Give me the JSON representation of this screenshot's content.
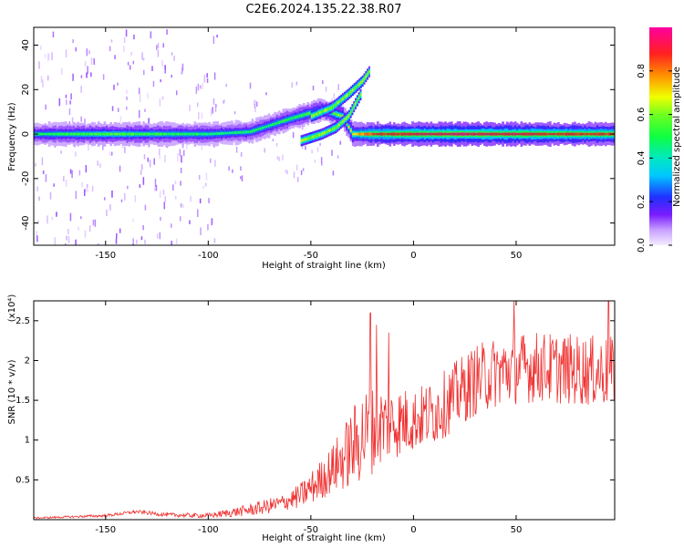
{
  "title": "C2E6.2024.135.22.38.R07",
  "colors": {
    "trace": "#f03232",
    "spectrogram_core": "#e8264a",
    "axis": "#000000"
  },
  "chart_data": [
    {
      "type": "heatmap",
      "xlabel": "Height of straight line (km)",
      "ylabel": "Frequency (Hz)",
      "xlim": [
        -185,
        98
      ],
      "ylim": [
        -50,
        48
      ],
      "x_ticks": [
        -150,
        -100,
        -50,
        0,
        50
      ],
      "y_ticks": [
        40,
        20,
        0,
        -20,
        -40
      ],
      "grid": false,
      "colorbar": {
        "label": "Normalized spectral amplitude",
        "range": [
          0,
          1
        ],
        "ticks": [
          0.0,
          0.2,
          0.4,
          0.6,
          0.8
        ],
        "colormap": "rainbow (purple → blue → cyan → green → yellow → red → magenta)"
      },
      "main_band": {
        "description": "narrow band near 0 Hz across all heights; strongest (red) from about -20 to 95 km",
        "center_hz": [
          [
            -185,
            0
          ],
          [
            -100,
            0
          ],
          [
            -80,
            1
          ],
          [
            -70,
            4
          ],
          [
            -60,
            7
          ],
          [
            -45,
            11
          ],
          [
            -35,
            8
          ],
          [
            -30,
            0
          ],
          [
            -20,
            0
          ],
          [
            95,
            0
          ]
        ],
        "amplitude": [
          [
            -185,
            0.45
          ],
          [
            -150,
            0.55
          ],
          [
            -120,
            0.5
          ],
          [
            -90,
            0.45
          ],
          [
            -60,
            0.5
          ],
          [
            -40,
            0.55
          ],
          [
            -20,
            0.85
          ],
          [
            20,
            0.95
          ],
          [
            60,
            0.9
          ],
          [
            95,
            0.85
          ]
        ]
      },
      "branches": [
        {
          "description": "rising branch",
          "points": [
            [
              -50,
              8
            ],
            [
              -40,
              12
            ],
            [
              -32,
              18
            ],
            [
              -25,
              24
            ],
            [
              -22,
              28
            ]
          ]
        },
        {
          "description": "lower branch",
          "points": [
            [
              -55,
              -3
            ],
            [
              -45,
              0
            ],
            [
              -38,
              3
            ],
            [
              -32,
              8
            ],
            [
              -26,
              18
            ]
          ]
        }
      ],
      "noise": "scattered low-amplitude purple streaks at heights below -100 km, spanning the full frequency range"
    },
    {
      "type": "line",
      "xlabel": "Height of straight line (km)",
      "ylabel": "SNR (10 * v/v)",
      "y_scale_label": "(x10⁴)",
      "xlim": [
        -185,
        98
      ],
      "ylim": [
        0,
        2.75
      ],
      "x_ticks": [
        -150,
        -100,
        -50,
        0,
        50
      ],
      "y_ticks": [
        0.5,
        1.0,
        1.5,
        2.0,
        2.5
      ],
      "grid": false,
      "series": [
        {
          "color": "#f03232",
          "envelope_mean": [
            [
              -185,
              0.02
            ],
            [
              -150,
              0.05
            ],
            [
              -135,
              0.1
            ],
            [
              -120,
              0.06
            ],
            [
              -100,
              0.05
            ],
            [
              -80,
              0.12
            ],
            [
              -65,
              0.2
            ],
            [
              -55,
              0.3
            ],
            [
              -45,
              0.5
            ],
            [
              -35,
              0.75
            ],
            [
              -25,
              1.05
            ],
            [
              -15,
              1.2
            ],
            [
              0,
              1.25
            ],
            [
              10,
              1.35
            ],
            [
              20,
              1.55
            ],
            [
              30,
              1.75
            ],
            [
              40,
              1.85
            ],
            [
              50,
              1.9
            ],
            [
              60,
              1.92
            ],
            [
              70,
              1.9
            ],
            [
              80,
              1.88
            ],
            [
              95,
              1.85
            ]
          ],
          "envelope_spread": [
            [
              -185,
              0.01
            ],
            [
              -100,
              0.03
            ],
            [
              -60,
              0.12
            ],
            [
              -40,
              0.3
            ],
            [
              -25,
              0.6
            ],
            [
              -15,
              0.5
            ],
            [
              0,
              0.4
            ],
            [
              30,
              0.45
            ],
            [
              60,
              0.45
            ],
            [
              95,
              0.45
            ]
          ],
          "peaks": [
            [
              -21,
              2.6
            ],
            [
              -18,
              2.45
            ],
            [
              -12,
              2.35
            ],
            [
              49,
              2.75
            ],
            [
              95,
              2.75
            ]
          ]
        }
      ]
    }
  ]
}
